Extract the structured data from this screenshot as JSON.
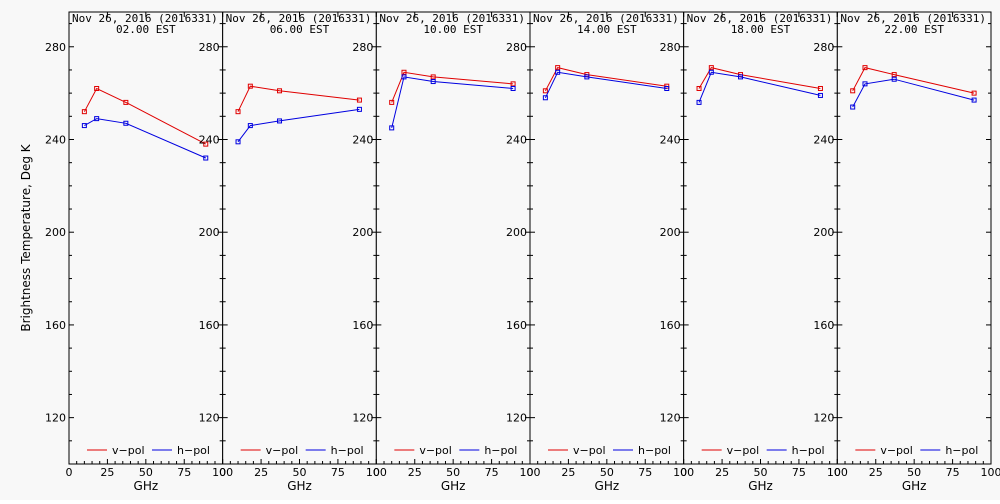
{
  "chart_data": {
    "type": "line",
    "ylabel": "Brightness Temperature, Deg K",
    "xlabel": "GHz",
    "ylim": [
      100,
      295
    ],
    "xlim": [
      0,
      100
    ],
    "yticks": [
      120,
      160,
      200,
      240,
      280
    ],
    "xticks": [
      0,
      25,
      50,
      75,
      100
    ],
    "xtick_labels": [
      "0",
      "25",
      "50",
      "75",
      "100"
    ],
    "ytick_labels": [
      "120",
      "160",
      "200",
      "240",
      "280"
    ],
    "colors": {
      "v-pol": "#e00000",
      "h-pol": "#0000e0"
    },
    "legend": [
      "v−pol",
      "h−pol"
    ],
    "legend_position": "bottom",
    "x": [
      10,
      18,
      37,
      89
    ],
    "panels": [
      {
        "title_line1": "Nov 26, 2016 (2016331)",
        "title_line2": "02.00 EST",
        "series": [
          {
            "name": "v−pol",
            "values": [
              252,
              262,
              256,
              238
            ]
          },
          {
            "name": "h−pol",
            "values": [
              246,
              249,
              247,
              232
            ]
          }
        ]
      },
      {
        "title_line1": "Nov 26, 2016 (2016331)",
        "title_line2": "06.00 EST",
        "series": [
          {
            "name": "v−pol",
            "values": [
              252,
              263,
              261,
              257
            ]
          },
          {
            "name": "h−pol",
            "values": [
              239,
              246,
              248,
              253
            ]
          }
        ]
      },
      {
        "title_line1": "Nov 26, 2016 (2016331)",
        "title_line2": "10.00 EST",
        "series": [
          {
            "name": "v−pol",
            "values": [
              256,
              269,
              267,
              264
            ]
          },
          {
            "name": "h−pol",
            "values": [
              245,
              267,
              265,
              262
            ]
          }
        ]
      },
      {
        "title_line1": "Nov 26, 2016 (2016331)",
        "title_line2": "14.00 EST",
        "series": [
          {
            "name": "v−pol",
            "values": [
              261,
              271,
              268,
              263
            ]
          },
          {
            "name": "h−pol",
            "values": [
              258,
              269,
              267,
              262
            ]
          }
        ]
      },
      {
        "title_line1": "Nov 26, 2016 (2016331)",
        "title_line2": "18.00 EST",
        "series": [
          {
            "name": "v−pol",
            "values": [
              262,
              271,
              268,
              262
            ]
          },
          {
            "name": "h−pol",
            "values": [
              256,
              269,
              267,
              259
            ]
          }
        ]
      },
      {
        "title_line1": "Nov 26, 2016 (2016331)",
        "title_line2": "22.00 EST",
        "series": [
          {
            "name": "v−pol",
            "values": [
              261,
              271,
              268,
              260
            ]
          },
          {
            "name": "h−pol",
            "values": [
              254,
              264,
              266,
              257
            ]
          }
        ]
      }
    ]
  }
}
